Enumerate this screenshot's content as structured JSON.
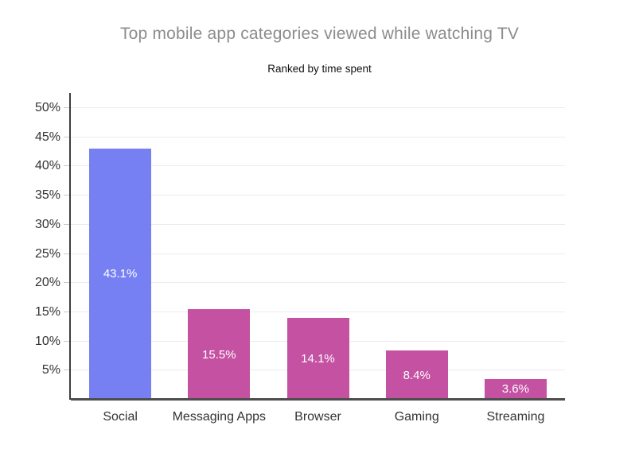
{
  "chart_data": {
    "type": "bar",
    "title": "Top mobile app categories viewed while watching TV",
    "subtitle": "Ranked by time spent",
    "categories": [
      "Social",
      "Messaging Apps",
      "Browser",
      "Gaming",
      "Streaming"
    ],
    "values": [
      43.1,
      15.5,
      14.1,
      8.4,
      3.6
    ],
    "value_labels": [
      "43.1%",
      "15.5%",
      "14.1%",
      "8.4%",
      "3.6%"
    ],
    "bar_colors": [
      "#7680f2",
      "#c451a2",
      "#c451a2",
      "#c451a2",
      "#c451a2"
    ],
    "ytick_values": [
      5,
      10,
      15,
      20,
      25,
      30,
      35,
      40,
      45,
      50
    ],
    "ytick_labels": [
      "5%",
      "10%",
      "15%",
      "20%",
      "25%",
      "30%",
      "35%",
      "40%",
      "45%",
      "50%"
    ],
    "xlabel": "",
    "ylabel": "",
    "ylim": [
      0,
      52.6
    ],
    "grid": true,
    "legend": "none",
    "colors": {
      "title_text": "#8c8c8c",
      "subtitle_text": "#111111",
      "axis_text": "#333333",
      "axis_line": "#3d3d3d",
      "gridline": "#ececec",
      "bar_label_text": "#ffffff",
      "background": "#ffffff"
    }
  }
}
